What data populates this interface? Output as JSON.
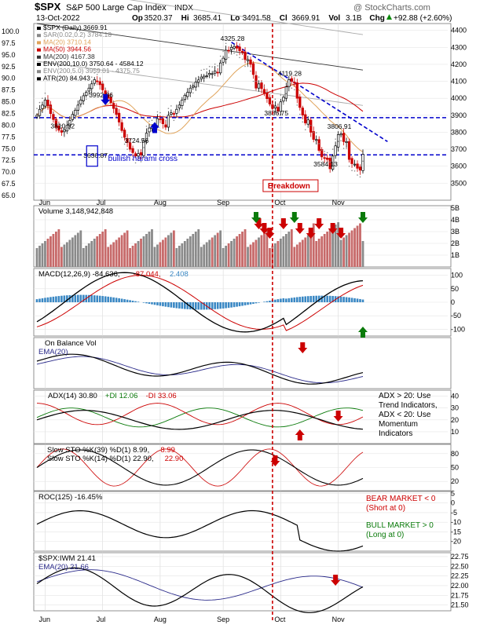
{
  "header": {
    "symbol": "$SPX",
    "name": "S&P 500 Large Cap Index",
    "exchange": "INDX",
    "date": "13-Oct-2022",
    "watermark": "@ StockCharts.com",
    "stats": [
      {
        "label": "Op",
        "value": "3520.37"
      },
      {
        "label": "Hi",
        "value": "3685.41"
      },
      {
        "label": "Lo",
        "value": "3491.58"
      },
      {
        "label": "Cl",
        "value": "3669.91"
      },
      {
        "label": "Vol",
        "value": "3.1B"
      },
      {
        "label": "Chg",
        "value": "+92.88 (+2.60%)"
      }
    ],
    "change_color": "#0a8a0a",
    "change_icon": "up-triangle-icon"
  },
  "colors": {
    "up_candle": "#000000",
    "down_candle": "#cc0000",
    "ma20": "#e0a35a",
    "ma50": "#cc0000",
    "ma200": "#333333",
    "annotation_blue": "#0000cc",
    "breakdown_red": "#cc0000",
    "volume_up": "#8a8a8a",
    "volume_down": "#c76a6a",
    "macd_hist": "#3a88c4"
  },
  "chart_data": [
    {
      "type": "candlestick",
      "panel": "price",
      "legend": [
        {
          "text": "$SPX (Daily) 3669.91",
          "color": "#000000",
          "icon": "candle-icon"
        },
        {
          "text": "SAR(0.02,0.2) 3784.18",
          "color": "#888888",
          "icon": "dot-icon"
        },
        {
          "text": "MA(20) 3710.14",
          "color": "#e0a35a",
          "icon": "line-icon"
        },
        {
          "text": "MA(50) 3944.56",
          "color": "#cc0000",
          "icon": "line-icon"
        },
        {
          "text": "MA(200) 4167.38",
          "color": "#333333",
          "icon": "line-icon"
        },
        {
          "text": "ENV(200,10.0) 3750.64 - 4584.12",
          "color": "#000000",
          "icon": "dash-icon"
        },
        {
          "text": "ENV(200,5.0) 3959.01 - 4375.75",
          "color": "#888888",
          "icon": "dash-icon"
        },
        {
          "text": "ATR(20) 84.943",
          "color": "#000000",
          "icon": "line-icon"
        }
      ],
      "left_axis": {
        "ticks": [
          "100.0",
          "97.5",
          "95.0",
          "92.5",
          "90.0",
          "87.5",
          "85.0",
          "82.5",
          "80.0",
          "77.5",
          "75.0",
          "72.5",
          "70.0",
          "67.5",
          "65.0"
        ]
      },
      "right_axis": {
        "ticks": [
          "4400",
          "4300",
          "4200",
          "4100",
          "4000",
          "3900",
          "3800",
          "3700",
          "3600",
          "3500"
        ],
        "range": [
          3400,
          4440
        ]
      },
      "x_labels": [
        "Jun",
        "Jul",
        "Aug",
        "Sep",
        "Oct",
        "Nov"
      ],
      "closes": [
        3900,
        3935,
        3960,
        3990,
        3955,
        3910,
        3875,
        3830,
        3812,
        3800,
        3815,
        3840,
        3870,
        3905,
        3930,
        3960,
        3990,
        4015,
        4035,
        4060,
        4085,
        4110,
        4100,
        4080,
        4050,
        4020,
        4000,
        3975,
        3940,
        3905,
        3860,
        3810,
        3770,
        3740,
        3700,
        3680,
        3660,
        3674,
        3667,
        3750,
        3795,
        3825,
        3830,
        3845,
        3880,
        3875,
        3850,
        3830,
        3900,
        3915,
        3910,
        3935,
        3960,
        3990,
        4018,
        4035,
        4060,
        4072,
        4095,
        4108,
        4125,
        4130,
        4132,
        4147,
        4145,
        4161,
        4151,
        4208,
        4236,
        4283,
        4280,
        4300,
        4305,
        4295,
        4280,
        4270,
        4228,
        4228,
        4200,
        4140,
        4060,
        4085,
        4057,
        4030,
        3998,
        3966,
        3940,
        3955,
        3924,
        3979,
        4006,
        4067,
        4110,
        4100,
        4090,
        4000,
        3946,
        3901,
        3855,
        3873,
        3800,
        3758,
        3757,
        3693,
        3655,
        3647,
        3640,
        3585,
        3660,
        3720,
        3786,
        3790,
        3745,
        3745,
        3640,
        3615,
        3612,
        3588,
        3577,
        3670
      ],
      "price_labels": [
        {
          "text": "3810.32",
          "price": 3810,
          "bar": 9
        },
        {
          "text": "3636.87",
          "price": 3636,
          "bar": 21
        },
        {
          "text": "3992.86",
          "price": 3992,
          "bar": 23
        },
        {
          "text": "3724.56",
          "price": 3724,
          "bar": 36
        },
        {
          "text": "4325.28",
          "price": 4325,
          "bar": 71
        },
        {
          "text": "4119.28",
          "price": 4119,
          "bar": 92
        },
        {
          "text": "3886.75",
          "price": 3886,
          "bar": 87
        },
        {
          "text": "3806.91",
          "price": 3806,
          "bar": 110
        },
        {
          "text": "3584.13",
          "price": 3584,
          "bar": 105
        }
      ],
      "annotations": [
        {
          "text": "bullish harami cross",
          "color": "#0000cc"
        },
        {
          "text": "Breakdown",
          "color": "#cc0000"
        }
      ],
      "horizontal_lines": [
        3886,
        3667
      ]
    },
    {
      "type": "bar",
      "panel": "volume",
      "legend": "Volume 3,148,942,848",
      "ticks": [
        "5B",
        "4B",
        "3B",
        "2B",
        "1B"
      ],
      "range": [
        0,
        5.2
      ]
    },
    {
      "type": "line",
      "panel": "macd",
      "legend": [
        {
          "text": "MACD(12,26,9) -84.636,",
          "color": "#000000"
        },
        {
          "text": "-87.044,",
          "color": "#cc0000"
        },
        {
          "text": "2.408",
          "color": "#3a88c4"
        }
      ],
      "ticks": [
        "100",
        "50",
        "0",
        "-50",
        "-100"
      ],
      "range": [
        -125,
        125
      ]
    },
    {
      "type": "line",
      "panel": "obv",
      "legend": [
        {
          "text": "On Balance Vol",
          "color": "#000000"
        },
        {
          "text": "EMA(20)",
          "color": "#2a2a8a"
        }
      ]
    },
    {
      "type": "line",
      "panel": "adx",
      "legend": [
        {
          "text": "ADX(14) 30.80",
          "color": "#000000"
        },
        {
          "text": "+DI 12.06",
          "color": "#0a7a0a"
        },
        {
          "text": "-DI 33.06",
          "color": "#cc0000"
        }
      ],
      "ticks": [
        "40",
        "30",
        "20",
        "10"
      ],
      "range": [
        0,
        45
      ],
      "note": "ADX > 20: Use Trend Indicators, ADX < 20: Use Momentum Indicators",
      "note_lines": [
        "ADX > 20: Use",
        "Trend Indicators,",
        "ADX < 20: Use",
        "Momentum",
        "Indicators"
      ]
    },
    {
      "type": "line",
      "panel": "stochastics",
      "legend": [
        {
          "text": "Slow STO %K(39) %D(1) 8.99,",
          "color": "#000000"
        },
        {
          "text": "8.99",
          "color": "#cc0000"
        },
        {
          "text": "Slow STO %K(14) %D(1) 22.90,",
          "color": "#000000"
        },
        {
          "text": "22.90",
          "color": "#cc0000"
        }
      ],
      "ticks": [
        "80",
        "50",
        "20"
      ],
      "range": [
        0,
        100
      ]
    },
    {
      "type": "line",
      "panel": "roc",
      "legend": "ROC(125) -16.45%",
      "ticks": [
        "5",
        "0",
        "-5",
        "-10",
        "-15",
        "-20"
      ],
      "range": [
        -25,
        6
      ],
      "notes": [
        {
          "text": "BEAR MARKET < 0",
          "color": "#cc0000"
        },
        {
          "text": "(Short at 0)",
          "color": "#cc0000"
        },
        {
          "text": "BULL MARKET > 0",
          "color": "#0a7a0a"
        },
        {
          "text": "(Long at 0)",
          "color": "#0a7a0a"
        }
      ]
    },
    {
      "type": "line",
      "panel": "ratio",
      "legend": [
        {
          "text": "$SPX:IWM 21.41",
          "color": "#000000"
        },
        {
          "text": "EMA(20) 21.66",
          "color": "#2a2a8a"
        }
      ],
      "ticks": [
        "22.75",
        "22.50",
        "22.25",
        "22.00",
        "21.75",
        "21.50"
      ],
      "range": [
        21.35,
        22.85
      ]
    }
  ]
}
